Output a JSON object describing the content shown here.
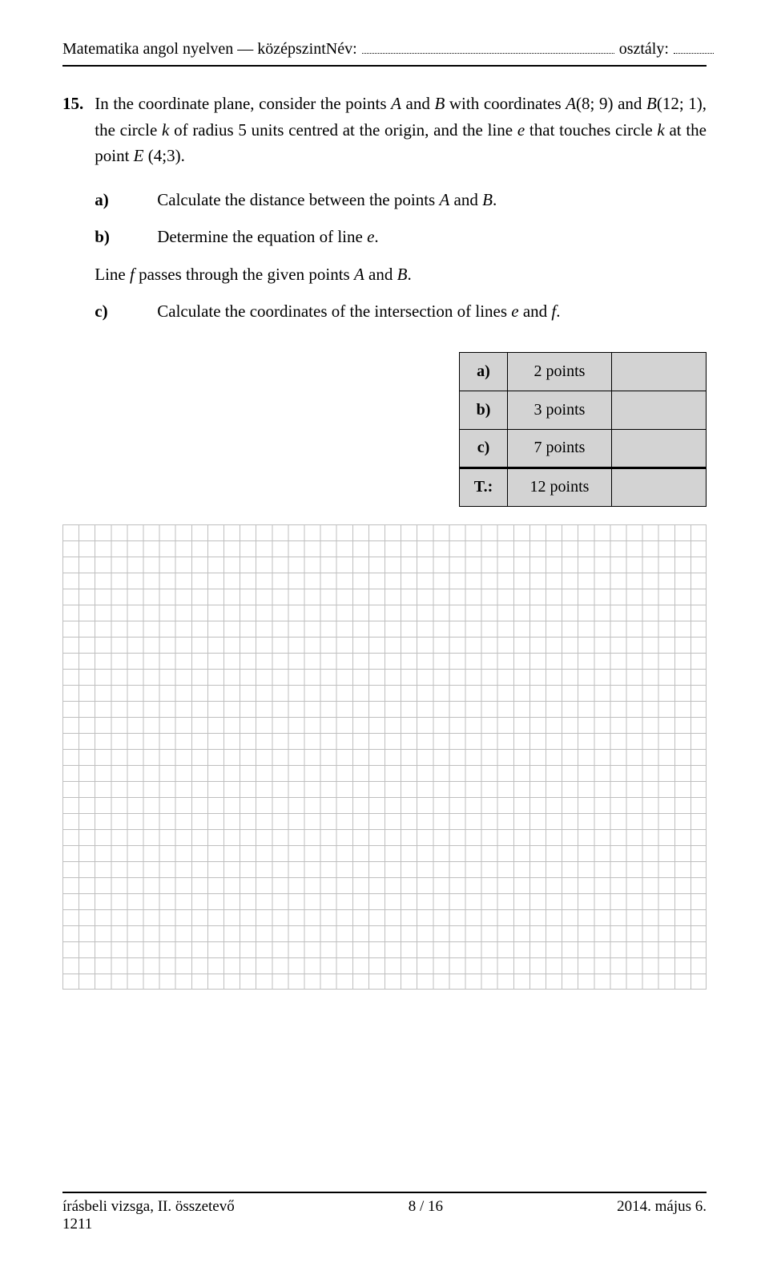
{
  "header": {
    "left": "Matematika angol nyelven — középszint",
    "name_label": "Név:",
    "class_label": "osztály:"
  },
  "question": {
    "number": "15.",
    "body_parts": {
      "t1": "In the coordinate plane, consider the points ",
      "A": "A",
      "t2": " and ",
      "B": "B",
      "t3": " with coordinates ",
      "Aco": "A",
      "t4": "(8; 9) and ",
      "Bco": "B",
      "t5": "(12; 1), the circle ",
      "k1": "k",
      "t6": " of radius 5 units centred at the origin, and the line ",
      "e1": "e",
      "t7": " that touches circle ",
      "k2": "k",
      "t8": " at the point ",
      "Eco": "E",
      "t9": " (4;3)."
    },
    "parts": {
      "a": {
        "label": "a)",
        "pre": "Calculate the distance between the points ",
        "A": "A",
        "mid": " and ",
        "B": "B",
        "post": "."
      },
      "b": {
        "label": "b)",
        "pre": "Determine the equation of line ",
        "e": "e",
        "post": "."
      },
      "mid": {
        "pre": "Line ",
        "f": "f",
        "mid": " passes through the given points ",
        "A": "A",
        "mid2": " and ",
        "B": "B",
        "post": "."
      },
      "c": {
        "label": "c)",
        "pre": "Calculate the coordinates of the intersection of lines ",
        "e": "e",
        "mid": " and ",
        "f": "f",
        "post": "."
      }
    }
  },
  "points_table": {
    "rows": [
      {
        "label": "a)",
        "points": "2 points"
      },
      {
        "label": "b)",
        "points": "3 points"
      },
      {
        "label": "c)",
        "points": "7 points"
      }
    ],
    "total": {
      "label": "T.:",
      "points": "12 points"
    }
  },
  "footer": {
    "left_line1": "írásbeli vizsga, II. összetevő",
    "left_line2": "1211",
    "center": "8 / 16",
    "right": "2014. május 6."
  }
}
